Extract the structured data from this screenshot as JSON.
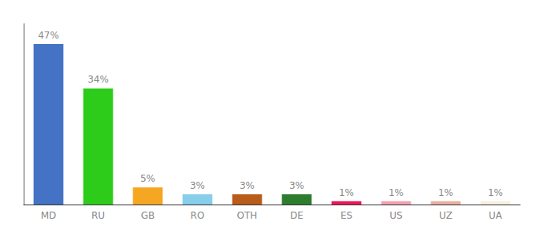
{
  "chart_data": {
    "type": "bar",
    "categories": [
      "MD",
      "RU",
      "GB",
      "RO",
      "OTH",
      "DE",
      "ES",
      "US",
      "UZ",
      "UA"
    ],
    "values": [
      47,
      34,
      5,
      3,
      3,
      3,
      1,
      1,
      1,
      1
    ],
    "value_labels": [
      "47%",
      "34%",
      "5%",
      "3%",
      "3%",
      "3%",
      "1%",
      "1%",
      "1%",
      "1%"
    ],
    "colors": [
      "#4472c4",
      "#2ecc1a",
      "#f5a623",
      "#87ceeb",
      "#b85c1a",
      "#2e7d2e",
      "#e8185a",
      "#f4a0b0",
      "#e8b0a0",
      "#f5f0e0"
    ],
    "ylim": [
      0,
      53
    ],
    "data_labels": true,
    "tick_labels": "x",
    "grid": false
  }
}
